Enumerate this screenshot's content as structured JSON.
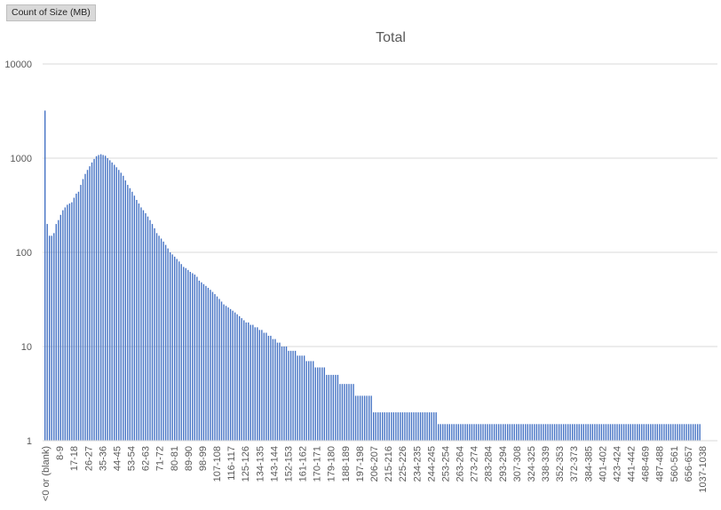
{
  "field_button": {
    "label": "Count of Size (MB)"
  },
  "chart_data": {
    "type": "bar",
    "title": "Total",
    "xlabel": "",
    "ylabel": "",
    "y_scale": "log",
    "ylim": [
      1,
      10000
    ],
    "y_ticks": [
      "1",
      "10",
      "100",
      "1000",
      "10000"
    ],
    "grid": true,
    "legend": "none",
    "x_tick_labels": [
      "<0 or (blank)",
      "8-9",
      "17-18",
      "26-27",
      "35-36",
      "44-45",
      "53-54",
      "62-63",
      "71-72",
      "80-81",
      "89-90",
      "98-99",
      "107-108",
      "116-117",
      "125-126",
      "134-135",
      "143-144",
      "152-153",
      "161-162",
      "170-171",
      "179-180",
      "188-189",
      "197-198",
      "206-207",
      "215-216",
      "225-226",
      "234-235",
      "244-245",
      "253-254",
      "263-264",
      "273-274",
      "283-284",
      "293-294",
      "307-308",
      "324-325",
      "338-339",
      "352-353",
      "372-373",
      "384-385",
      "401-402",
      "423-424",
      "441-442",
      "468-469",
      "487-488",
      "560-561",
      "656-657",
      "1037-1038"
    ],
    "bar_color": "#4472c4",
    "values": [
      3200,
      200,
      150,
      150,
      160,
      200,
      220,
      250,
      280,
      300,
      320,
      330,
      340,
      380,
      420,
      440,
      520,
      600,
      680,
      750,
      820,
      900,
      980,
      1050,
      1080,
      1100,
      1080,
      1060,
      1000,
      950,
      900,
      850,
      800,
      750,
      700,
      650,
      580,
      520,
      480,
      440,
      400,
      360,
      330,
      300,
      280,
      260,
      240,
      220,
      200,
      180,
      160,
      150,
      140,
      130,
      120,
      110,
      100,
      95,
      90,
      85,
      80,
      75,
      70,
      68,
      65,
      62,
      60,
      58,
      55,
      50,
      48,
      46,
      44,
      42,
      40,
      38,
      36,
      34,
      32,
      30,
      28,
      27,
      26,
      25,
      24,
      23,
      22,
      21,
      20,
      19,
      18,
      18,
      17,
      17,
      16,
      16,
      15,
      15,
      14,
      14,
      13,
      13,
      12,
      12,
      11,
      11,
      10,
      10,
      10,
      9,
      9,
      9,
      9,
      8,
      8,
      8,
      8,
      7,
      7,
      7,
      7,
      6,
      6,
      6,
      6,
      6,
      5,
      5,
      5,
      5,
      5,
      5,
      4,
      4,
      4,
      4,
      4,
      4,
      4,
      3,
      3,
      3,
      3,
      3,
      3,
      3,
      3,
      2,
      2,
      2,
      2,
      2,
      2,
      2,
      2,
      2,
      2,
      2,
      2,
      2,
      2,
      2,
      2,
      2,
      2,
      2,
      2,
      2,
      2,
      2,
      2,
      2,
      2,
      2,
      2,
      2,
      1.5,
      1.5,
      1.5,
      1.5,
      1.5,
      1.5,
      1.5,
      1.5,
      1.5,
      1.5,
      1.5,
      1.5,
      1.5,
      1.5,
      1.5,
      1.5,
      1.5,
      1.5,
      1.5,
      1.5,
      1.5,
      1.5,
      1.5,
      1.5,
      1.5,
      1.5,
      1.5,
      1.5,
      1.5,
      1.5,
      1.5,
      1.5,
      1.5,
      1.5,
      1.5,
      1.5,
      1.5,
      1.5,
      1.5,
      1.5,
      1.5,
      1.5,
      1.5,
      1.5,
      1.5,
      1.5,
      1.5,
      1.5,
      1.5,
      1.5,
      1.5,
      1.5,
      1.5,
      1.5,
      1.5,
      1.5,
      1.5,
      1.5,
      1.5,
      1.5,
      1.5,
      1.5,
      1.5,
      1.5,
      1.5,
      1.5,
      1.5,
      1.5,
      1.5,
      1.5,
      1.5,
      1.5,
      1.5,
      1.5,
      1.5,
      1.5,
      1.5,
      1.5,
      1.5,
      1.5,
      1.5,
      1.5,
      1.5,
      1.5,
      1.5,
      1.5,
      1.5,
      1.5,
      1.5,
      1.5,
      1.5,
      1.5,
      1.5,
      1.5,
      1.5,
      1.5,
      1.5,
      1.5,
      1.5,
      1.5,
      1.5,
      1.5,
      1.5,
      1.5,
      1.5,
      1.5,
      1.5,
      1.5,
      1.5,
      1.5,
      1.5,
      1.5,
      1.5,
      1.5,
      1.5,
      1.5,
      1.5,
      1.5
    ]
  }
}
